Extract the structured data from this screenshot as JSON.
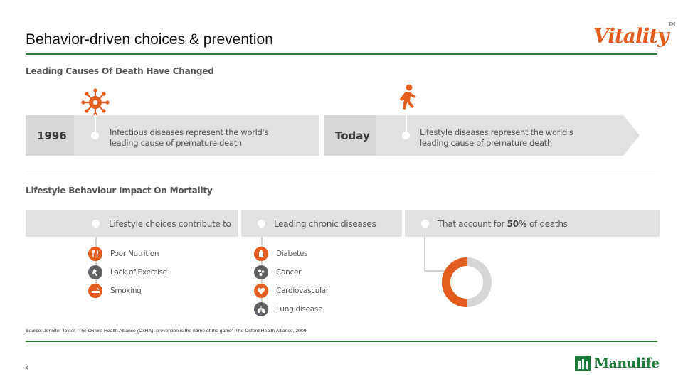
{
  "slide": {
    "title": "Behavior-driven choices & prevention",
    "logo": "Vitality",
    "logo_tm": "TM",
    "page_number": "4"
  },
  "timeline": {
    "heading": "Leading Causes Of Death Have Changed",
    "past": {
      "year": "1996",
      "text_line1": "Infectious diseases represent the world's",
      "text_line2": "leading cause of premature death"
    },
    "present": {
      "year": "Today",
      "text_line1": "Lifestyle diseases represent the world's",
      "text_line2": "leading cause of premature death"
    }
  },
  "impact": {
    "heading": "Lifestyle Behaviour Impact On Mortality",
    "col1_header": "Lifestyle choices contribute to",
    "col2_header": "Leading chronic diseases",
    "col3_header_prefix": "That account for ",
    "col3_header_bold": "50%",
    "col3_header_suffix": " of deaths",
    "choices": [
      {
        "label": "Poor Nutrition",
        "icon": "utensils-icon"
      },
      {
        "label": "Lack of Exercise",
        "icon": "dumbbell-icon"
      },
      {
        "label": "Smoking",
        "icon": "cigarette-icon"
      }
    ],
    "diseases": [
      {
        "label": "Diabetes",
        "icon": "insulin-bottle-icon"
      },
      {
        "label": "Cancer",
        "icon": "cells-icon"
      },
      {
        "label": "Cardiovascular",
        "icon": "heart-icon"
      },
      {
        "label": "Lung disease",
        "icon": "lungs-icon"
      }
    ],
    "donut": {
      "share": 0.5,
      "highlight_color": "#e35d1e",
      "rest_color": "#d8d6d2"
    }
  },
  "footer": {
    "source": "Source: Jennifer Taylor. 'The Oxford Health Alliance (OxHA): prevention is the name of the game'. The Oxford Health Alliance, 2009.",
    "company": "Manulife"
  },
  "colors": {
    "accent": "#e35d1e",
    "brand_green": "#2e7d32",
    "band": "#e3e1de"
  }
}
